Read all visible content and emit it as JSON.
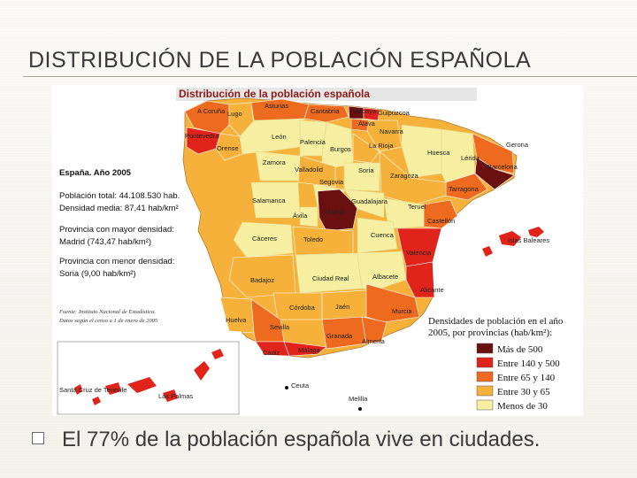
{
  "slide": {
    "title": "DISTRIBUCIÓN DE LA POBLACIÓN ESPAÑOLA",
    "bullet": "El 77% de la población española vive en ciudades."
  },
  "map": {
    "header": "Distribución de la población española",
    "info": {
      "title": "España. Año 2005",
      "poblacion_total": "Población total: 44.108.530 hab.",
      "densidad_media": "Densidad media: 87,41 hab/km²",
      "mayor_label": "Provincia con mayor densidad:",
      "mayor_value": "Madrid (743,47 hab/km²)",
      "menor_label": "Provincia con menor densidad:",
      "menor_value": "Soria (9,00 hab/km²)",
      "fuente": "Fuente: Instituto Nacional de Estadística.",
      "datos": "Datos según el censo a 1 de enero de 2005"
    },
    "legend": {
      "title_line1": "Densidades de población en el año",
      "title_line2": "2005, por provincias (hab/km²):",
      "items": [
        {
          "label": "Más de 500",
          "color": "#6b1010"
        },
        {
          "label": "Entre 140 y 500",
          "color": "#e0231b"
        },
        {
          "label": "Entre 65 y 140",
          "color": "#ee6a1e"
        },
        {
          "label": "Entre 30 y 65",
          "color": "#f6b13a"
        },
        {
          "label": "Menos de 30",
          "color": "#f6eea0"
        }
      ]
    },
    "colors": {
      "mas_500": "#6b1010",
      "e140_500": "#e0231b",
      "e65_140": "#ee6a1e",
      "e30_65": "#f6b13a",
      "menos_30": "#f6eea0",
      "sea": "#ffffff"
    },
    "provinces": {
      "a_coruna": "A Coruña",
      "lugo": "Lugo",
      "pontevedra": "Pontevedra",
      "orense": "Orense",
      "asturias": "Asturias",
      "cantabria": "Cantabria",
      "vizcaya": "Vizcaya",
      "guipuzcoa": "Guipúzcoa",
      "alava": "Álava",
      "navarra": "Navarra",
      "leon": "León",
      "palencia": "Palencia",
      "burgos": "Burgos",
      "la_rioja": "La Rioja",
      "huesca": "Huesca",
      "lerida": "Lérida",
      "gerona": "Gerona",
      "barcelona": "Barcelona",
      "zamora": "Zamora",
      "valladolid": "Valladolid",
      "soria": "Soria",
      "zaragoza": "Zaragoza",
      "tarragona": "Tarragona",
      "segovia": "Segovia",
      "salamanca": "Salamanca",
      "avila": "Ávila",
      "madrid": "Madrid",
      "guadalajara": "Guadalajara",
      "teruel": "Teruel",
      "castellon": "Castellón",
      "caceres": "Cáceres",
      "toledo": "Toledo",
      "cuenca": "Cuenca",
      "valencia": "Valencia",
      "islas_baleares": "Islas Baleares",
      "badajoz": "Badajoz",
      "ciudad_real": "Ciudad Real",
      "albacete": "Albacete",
      "alicante": "Alicante",
      "cordoba": "Córdoba",
      "jaen": "Jaén",
      "murcia": "Murcia",
      "huelva": "Huelva",
      "sevilla": "Sevilla",
      "granada": "Granada",
      "almeria": "Almería",
      "cadiz": "Cádiz",
      "malaga": "Málaga",
      "ceuta": "Ceuta",
      "melilla": "Melilla",
      "santa_cruz": "Santa Cruz de Tenerife",
      "las_palmas": "Las Palmas"
    }
  }
}
